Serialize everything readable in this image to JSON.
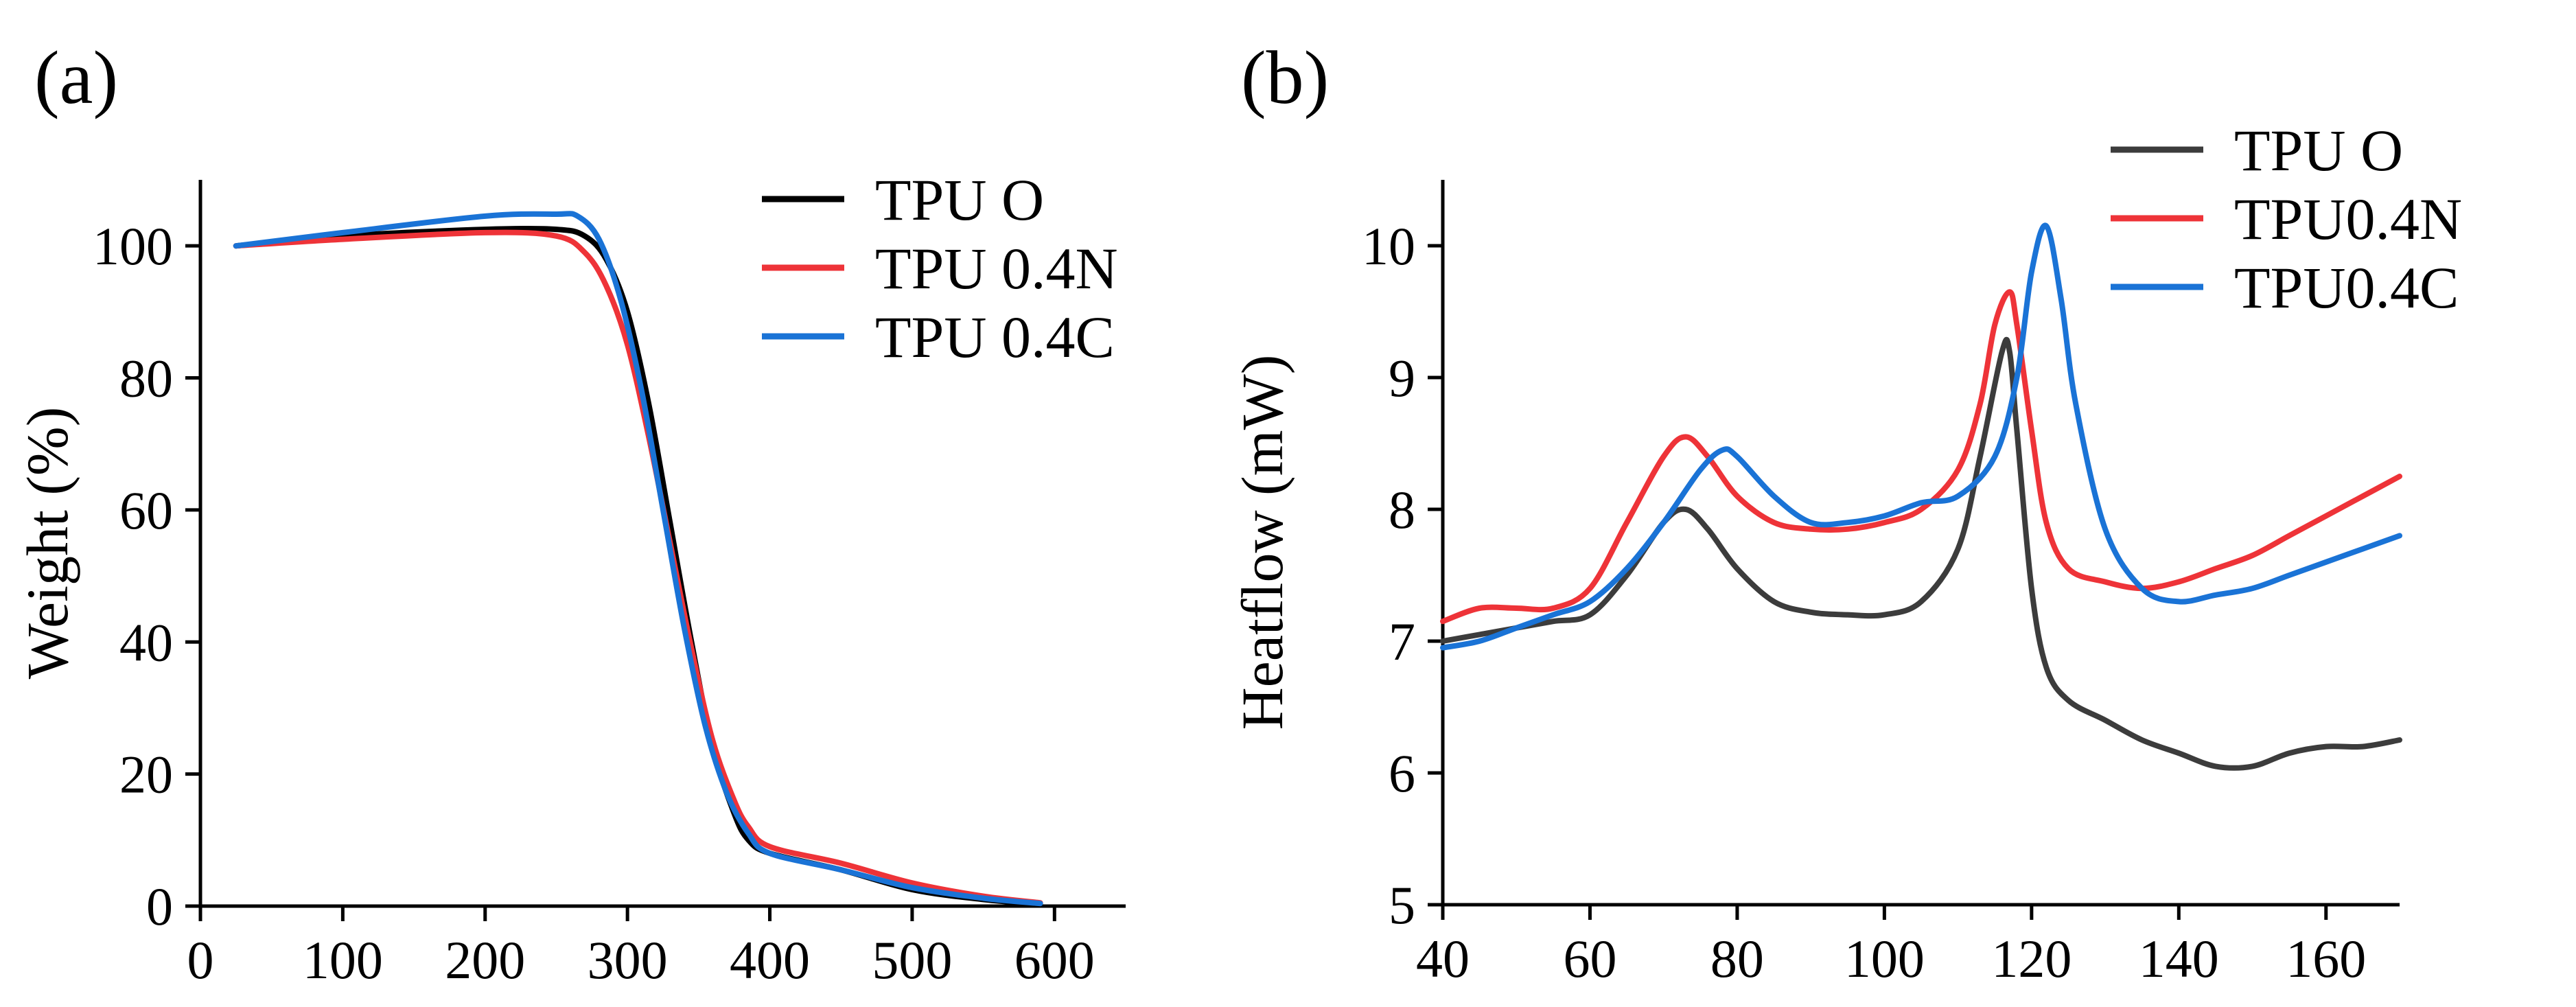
{
  "chart_data": [
    {
      "type": "line",
      "panel_label": "(a)",
      "title": "",
      "xlabel": "",
      "ylabel": "Weight (%)",
      "xlim": [
        0,
        650
      ],
      "ylim": [
        0,
        110
      ],
      "xticks": [
        "0",
        "100",
        "200",
        "300",
        "400",
        "500",
        "600"
      ],
      "yticks": [
        "0",
        "20",
        "40",
        "60",
        "80",
        "100"
      ],
      "legend_position": "top-right",
      "series": [
        {
          "name": "TPU O",
          "color": "#000000",
          "x": [
            25,
            100,
            200,
            250,
            270,
            285,
            300,
            315,
            330,
            345,
            360,
            375,
            385,
            400,
            450,
            500,
            550,
            590
          ],
          "y": [
            100,
            101.5,
            102.5,
            102.5,
            101.5,
            98,
            90,
            76,
            58,
            40,
            24,
            14,
            10,
            8,
            5.5,
            2.5,
            1,
            0.3
          ]
        },
        {
          "name": "TPU 0.4N",
          "color": "#ee3338",
          "x": [
            25,
            100,
            200,
            250,
            270,
            285,
            300,
            315,
            330,
            345,
            360,
            375,
            385,
            400,
            450,
            500,
            550,
            590
          ],
          "y": [
            100,
            101,
            102,
            101.5,
            99,
            94,
            85,
            71,
            55,
            39,
            25,
            16,
            12,
            9,
            6.5,
            3.5,
            1.5,
            0.5
          ]
        },
        {
          "name": "TPU 0.4C",
          "color": "#1a73d6",
          "x": [
            25,
            100,
            200,
            250,
            265,
            280,
            295,
            310,
            325,
            340,
            355,
            370,
            385,
            400,
            450,
            500,
            550,
            590
          ],
          "y": [
            100,
            102,
            104.5,
            104.8,
            104.5,
            101,
            92,
            78,
            60,
            42,
            27,
            17,
            11,
            8,
            5.5,
            2.8,
            1.2,
            0.4
          ]
        }
      ]
    },
    {
      "type": "line",
      "panel_label": "(b)",
      "title": "",
      "xlabel": "",
      "ylabel": "Heatflow (mW)",
      "xlim": [
        40,
        170
      ],
      "ylim": [
        5,
        10.5
      ],
      "xticks": [
        "40",
        "60",
        "80",
        "100",
        "120",
        "140",
        "160"
      ],
      "yticks": [
        "5",
        "6",
        "7",
        "8",
        "9",
        "10"
      ],
      "legend_position": "top-right",
      "series": [
        {
          "name": "TPU O",
          "color": "#3c3c3c",
          "x": [
            40,
            45,
            50,
            55,
            60,
            65,
            70,
            73,
            76,
            80,
            85,
            90,
            95,
            100,
            105,
            110,
            113,
            116,
            117,
            118,
            120,
            122,
            125,
            130,
            135,
            140,
            145,
            150,
            155,
            160,
            165,
            170
          ],
          "y": [
            7.0,
            7.05,
            7.1,
            7.15,
            7.2,
            7.5,
            7.9,
            8.0,
            7.85,
            7.55,
            7.3,
            7.22,
            7.2,
            7.2,
            7.3,
            7.7,
            8.4,
            9.2,
            9.2,
            8.6,
            7.4,
            6.8,
            6.55,
            6.4,
            6.25,
            6.15,
            6.05,
            6.05,
            6.15,
            6.2,
            6.2,
            6.25
          ]
        },
        {
          "name": "TPU0.4N",
          "color": "#ee3338",
          "x": [
            40,
            45,
            50,
            55,
            60,
            65,
            70,
            73,
            76,
            80,
            85,
            90,
            95,
            100,
            105,
            110,
            113,
            115,
            117,
            118,
            120,
            122,
            125,
            130,
            135,
            140,
            145,
            150,
            155,
            160,
            165,
            170
          ],
          "y": [
            7.15,
            7.25,
            7.25,
            7.25,
            7.4,
            7.9,
            8.4,
            8.55,
            8.4,
            8.1,
            7.9,
            7.85,
            7.85,
            7.9,
            8.0,
            8.3,
            8.8,
            9.4,
            9.65,
            9.4,
            8.6,
            7.9,
            7.55,
            7.45,
            7.4,
            7.45,
            7.55,
            7.65,
            7.8,
            7.95,
            8.1,
            8.25
          ]
        },
        {
          "name": "TPU0.4C",
          "color": "#1a73d6",
          "x": [
            40,
            45,
            50,
            55,
            60,
            65,
            70,
            75,
            78,
            80,
            85,
            90,
            95,
            100,
            105,
            110,
            115,
            118,
            120,
            122,
            124,
            126,
            130,
            135,
            140,
            145,
            150,
            155,
            160,
            165,
            170
          ],
          "y": [
            6.95,
            7.0,
            7.1,
            7.2,
            7.3,
            7.55,
            7.9,
            8.3,
            8.45,
            8.4,
            8.1,
            7.9,
            7.9,
            7.95,
            8.05,
            8.1,
            8.4,
            9.0,
            9.8,
            10.15,
            9.6,
            8.8,
            7.85,
            7.4,
            7.3,
            7.35,
            7.4,
            7.5,
            7.6,
            7.7,
            7.8
          ]
        }
      ]
    }
  ]
}
